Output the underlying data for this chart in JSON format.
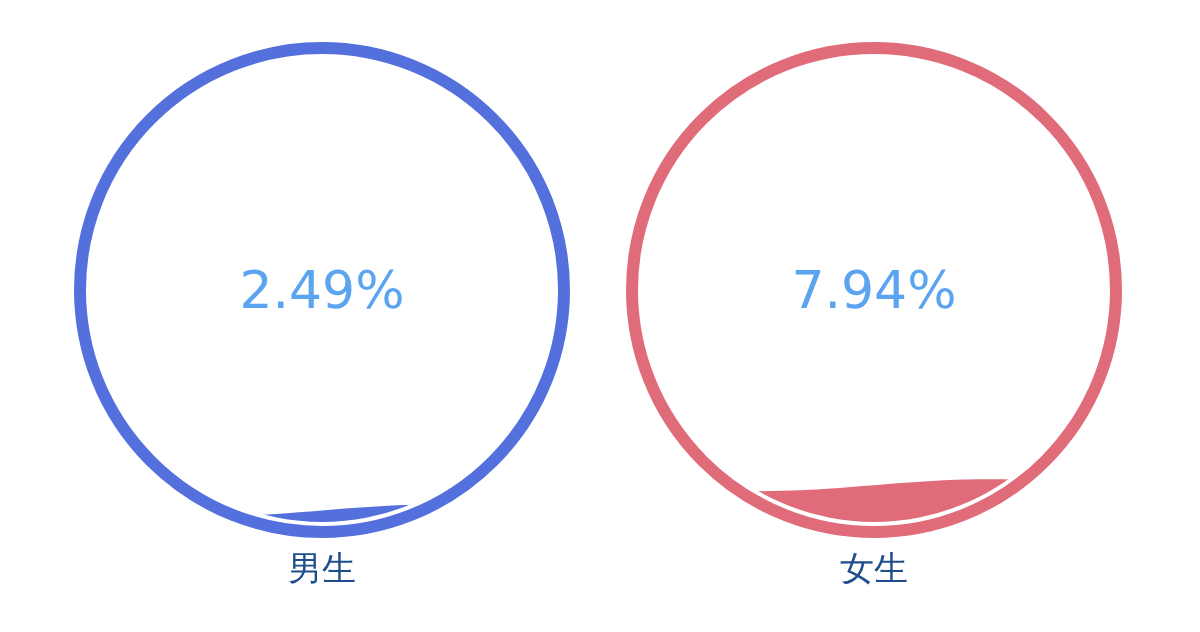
{
  "chart_data": {
    "type": "other",
    "categories": [
      "男生",
      "女生"
    ],
    "values": [
      2.49,
      7.94
    ],
    "value_labels": [
      "2.49%",
      "7.94%"
    ],
    "colors": [
      "#5470dc",
      "#e06c7a"
    ]
  }
}
